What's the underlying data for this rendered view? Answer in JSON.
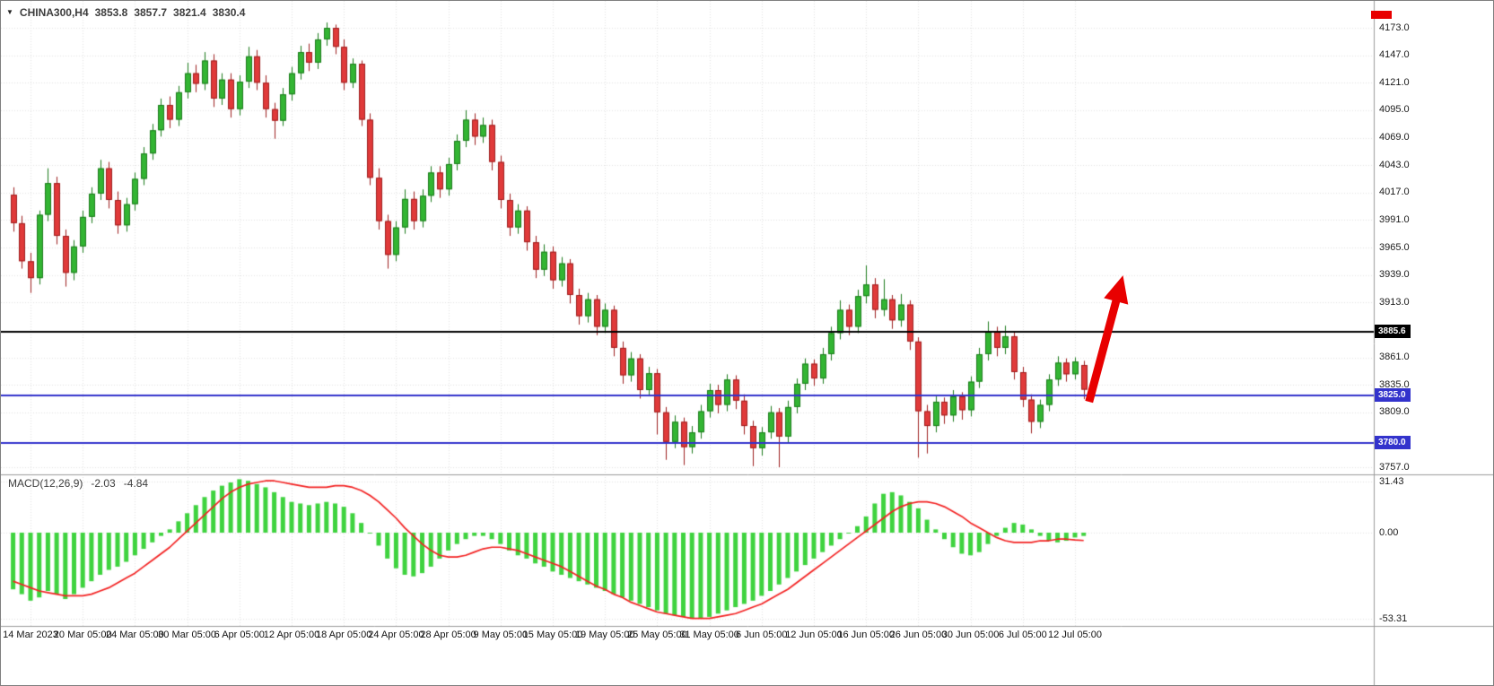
{
  "header": {
    "dropdown_icon": "▼",
    "symbol": "CHINA300,H4",
    "open": "3853.8",
    "high": "3857.7",
    "low": "3821.4",
    "close": "3830.4"
  },
  "macd": {
    "label": "MACD(12,26,9)",
    "value": "-2.03",
    "signal_value": "-4.84",
    "axis_ticks": [
      "31.43",
      "0.00",
      "-53.31"
    ]
  },
  "price_axis": {
    "ticks": [
      "4173.0",
      "4147.0",
      "4121.0",
      "4095.0",
      "4069.0",
      "4043.0",
      "4017.0",
      "3991.0",
      "3965.0",
      "3939.0",
      "3913.0",
      "3861.0",
      "3835.0",
      "3809.0",
      "3757.0"
    ]
  },
  "time_axis": {
    "labels": [
      {
        "text": "14 Mar 2023",
        "index": 2
      },
      {
        "text": "20 Mar 05:00",
        "index": 8
      },
      {
        "text": "24 Mar 05:00",
        "index": 14
      },
      {
        "text": "30 Mar 05:00",
        "index": 20
      },
      {
        "text": "6 Apr 05:00",
        "index": 26
      },
      {
        "text": "12 Apr 05:00",
        "index": 32
      },
      {
        "text": "18 Apr 05:00",
        "index": 38
      },
      {
        "text": "24 Apr 05:00",
        "index": 44
      },
      {
        "text": "28 Apr 05:00",
        "index": 50
      },
      {
        "text": "9 May 05:00",
        "index": 56
      },
      {
        "text": "15 May 05:00",
        "index": 62
      },
      {
        "text": "19 May 05:00",
        "index": 68
      },
      {
        "text": "25 May 05:00",
        "index": 74
      },
      {
        "text": "31 May 05:00",
        "index": 80
      },
      {
        "text": "6 Jun 05:00",
        "index": 86
      },
      {
        "text": "12 Jun 05:00",
        "index": 92
      },
      {
        "text": "16 Jun 05:00",
        "index": 98
      },
      {
        "text": "26 Jun 05:00",
        "index": 104
      },
      {
        "text": "30 Jun 05:00",
        "index": 110
      },
      {
        "text": "6 Jul 05:00",
        "index": 116
      },
      {
        "text": "12 Jul 05:00",
        "index": 122
      }
    ]
  },
  "lines": {
    "resistance": {
      "value": 3885.6,
      "label": "3885.6",
      "color": "#000000"
    },
    "support1": {
      "value": 3825.0,
      "label": "3825.0",
      "color": "#3333cc"
    },
    "support2": {
      "value": 3780.0,
      "label": "3780.0",
      "color": "#3333cc"
    }
  },
  "colors": {
    "bull": "#33b533",
    "bull_edge": "#1d7c1d",
    "bear": "#e03a3a",
    "bear_edge": "#9e1f1f",
    "histogram": "#3fd33f",
    "signal": "#f32222",
    "grid": "#e4e4e4",
    "separator": "#9b9b9b",
    "arrow": "#e80000",
    "axis_text": "#1a1a1a"
  },
  "chart_data": {
    "type": "candlestick+macd",
    "symbol": "CHINA300",
    "timeframe": "H4",
    "ylim": [
      3757.0,
      4173.0
    ],
    "macd_ylim": [
      -53.31,
      31.43
    ],
    "grid": true,
    "candles": [
      [
        4015,
        4022,
        3980,
        3988
      ],
      [
        3988,
        3995,
        3945,
        3952
      ],
      [
        3952,
        3960,
        3922,
        3936
      ],
      [
        3936,
        4000,
        3930,
        3996
      ],
      [
        3996,
        4040,
        3990,
        4026
      ],
      [
        4026,
        4032,
        3968,
        3976
      ],
      [
        3976,
        3982,
        3928,
        3941
      ],
      [
        3941,
        3972,
        3934,
        3966
      ],
      [
        3966,
        4000,
        3960,
        3994
      ],
      [
        3994,
        4022,
        3988,
        4016
      ],
      [
        4016,
        4048,
        4010,
        4040
      ],
      [
        4040,
        4046,
        4002,
        4010
      ],
      [
        4010,
        4018,
        3978,
        3986
      ],
      [
        3986,
        4012,
        3980,
        4006
      ],
      [
        4006,
        4036,
        4000,
        4030
      ],
      [
        4030,
        4060,
        4024,
        4054
      ],
      [
        4054,
        4082,
        4048,
        4076
      ],
      [
        4076,
        4106,
        4070,
        4100
      ],
      [
        4100,
        4108,
        4078,
        4086
      ],
      [
        4086,
        4118,
        4080,
        4112
      ],
      [
        4112,
        4140,
        4106,
        4130
      ],
      [
        4130,
        4138,
        4112,
        4120
      ],
      [
        4120,
        4150,
        4114,
        4142
      ],
      [
        4142,
        4148,
        4098,
        4106
      ],
      [
        4106,
        4130,
        4100,
        4124
      ],
      [
        4124,
        4130,
        4088,
        4096
      ],
      [
        4096,
        4128,
        4090,
        4122
      ],
      [
        4122,
        4155,
        4116,
        4146
      ],
      [
        4146,
        4152,
        4114,
        4121
      ],
      [
        4121,
        4128,
        4088,
        4096
      ],
      [
        4096,
        4102,
        4068,
        4085
      ],
      [
        4085,
        4116,
        4080,
        4110
      ],
      [
        4110,
        4136,
        4104,
        4130
      ],
      [
        4130,
        4156,
        4124,
        4150
      ],
      [
        4150,
        4158,
        4132,
        4140
      ],
      [
        4140,
        4168,
        4134,
        4162
      ],
      [
        4162,
        4178,
        4156,
        4173
      ],
      [
        4173,
        4176,
        4148,
        4155
      ],
      [
        4155,
        4162,
        4114,
        4121
      ],
      [
        4121,
        4144,
        4116,
        4139
      ],
      [
        4139,
        4142,
        4080,
        4086
      ],
      [
        4086,
        4092,
        4024,
        4031
      ],
      [
        4031,
        4040,
        3982,
        3990
      ],
      [
        3990,
        3996,
        3945,
        3958
      ],
      [
        3958,
        3990,
        3952,
        3984
      ],
      [
        3984,
        4020,
        3978,
        4011
      ],
      [
        4011,
        4018,
        3982,
        3990
      ],
      [
        3990,
        4020,
        3984,
        4014
      ],
      [
        4014,
        4042,
        4008,
        4036
      ],
      [
        4036,
        4042,
        4012,
        4020
      ],
      [
        4020,
        4050,
        4014,
        4044
      ],
      [
        4044,
        4072,
        4038,
        4066
      ],
      [
        4066,
        4095,
        4060,
        4086
      ],
      [
        4086,
        4092,
        4062,
        4070
      ],
      [
        4070,
        4088,
        4064,
        4081
      ],
      [
        4081,
        4086,
        4038,
        4046
      ],
      [
        4046,
        4052,
        4002,
        4010
      ],
      [
        4010,
        4016,
        3976,
        3984
      ],
      [
        3984,
        4006,
        3978,
        4000
      ],
      [
        4000,
        4004,
        3962,
        3970
      ],
      [
        3970,
        3976,
        3936,
        3944
      ],
      [
        3944,
        3968,
        3938,
        3961
      ],
      [
        3961,
        3966,
        3926,
        3934
      ],
      [
        3934,
        3956,
        3928,
        3950
      ],
      [
        3950,
        3954,
        3912,
        3920
      ],
      [
        3920,
        3926,
        3892,
        3900
      ],
      [
        3900,
        3922,
        3894,
        3916
      ],
      [
        3916,
        3920,
        3882,
        3890
      ],
      [
        3890,
        3912,
        3884,
        3906
      ],
      [
        3906,
        3910,
        3862,
        3870
      ],
      [
        3870,
        3876,
        3836,
        3844
      ],
      [
        3844,
        3866,
        3838,
        3860
      ],
      [
        3860,
        3864,
        3822,
        3830
      ],
      [
        3830,
        3852,
        3824,
        3846
      ],
      [
        3846,
        3850,
        3788,
        3809
      ],
      [
        3809,
        3814,
        3764,
        3781
      ],
      [
        3781,
        3806,
        3775,
        3800
      ],
      [
        3800,
        3804,
        3759,
        3776
      ],
      [
        3776,
        3796,
        3770,
        3790
      ],
      [
        3790,
        3816,
        3784,
        3810
      ],
      [
        3810,
        3836,
        3804,
        3830
      ],
      [
        3830,
        3835,
        3808,
        3816
      ],
      [
        3816,
        3845,
        3810,
        3840
      ],
      [
        3840,
        3844,
        3812,
        3820
      ],
      [
        3820,
        3826,
        3788,
        3796
      ],
      [
        3796,
        3801,
        3758,
        3775
      ],
      [
        3775,
        3795,
        3768,
        3790
      ],
      [
        3790,
        3815,
        3784,
        3809
      ],
      [
        3809,
        3813,
        3757,
        3786
      ],
      [
        3786,
        3820,
        3780,
        3814
      ],
      [
        3814,
        3841,
        3808,
        3836
      ],
      [
        3836,
        3860,
        3830,
        3855
      ],
      [
        3855,
        3859,
        3834,
        3841
      ],
      [
        3841,
        3870,
        3836,
        3864
      ],
      [
        3864,
        3890,
        3858,
        3884
      ],
      [
        3884,
        3915,
        3878,
        3906
      ],
      [
        3906,
        3911,
        3882,
        3890
      ],
      [
        3890,
        3925,
        3884,
        3919
      ],
      [
        3919,
        3948,
        3912,
        3930
      ],
      [
        3930,
        3936,
        3898,
        3906
      ],
      [
        3906,
        3935,
        3900,
        3916
      ],
      [
        3916,
        3920,
        3888,
        3896
      ],
      [
        3896,
        3921,
        3890,
        3911
      ],
      [
        3911,
        3915,
        3868,
        3876
      ],
      [
        3876,
        3880,
        3766,
        3810
      ],
      [
        3810,
        3816,
        3770,
        3796
      ],
      [
        3796,
        3824,
        3790,
        3819
      ],
      [
        3819,
        3823,
        3798,
        3806
      ],
      [
        3806,
        3830,
        3800,
        3824
      ],
      [
        3824,
        3828,
        3802,
        3811
      ],
      [
        3811,
        3843,
        3805,
        3838
      ],
      [
        3838,
        3870,
        3832,
        3864
      ],
      [
        3864,
        3895,
        3858,
        3886
      ],
      [
        3886,
        3890,
        3862,
        3870
      ],
      [
        3870,
        3891,
        3864,
        3881
      ],
      [
        3881,
        3885,
        3840,
        3847
      ],
      [
        3847,
        3852,
        3814,
        3821
      ],
      [
        3821,
        3826,
        3789,
        3800
      ],
      [
        3800,
        3821,
        3794,
        3816
      ],
      [
        3816,
        3845,
        3810,
        3840
      ],
      [
        3840,
        3862,
        3834,
        3856
      ],
      [
        3856,
        3860,
        3838,
        3845
      ],
      [
        3845,
        3861,
        3840,
        3857
      ],
      [
        3853.8,
        3857.7,
        3821.4,
        3830.4
      ]
    ],
    "macd_histogram": [
      -35,
      -38,
      -42,
      -40,
      -36,
      -38,
      -41,
      -38,
      -34,
      -30,
      -26,
      -23,
      -21,
      -18,
      -14,
      -10,
      -6,
      -2,
      2,
      7,
      12,
      17,
      22,
      26,
      29,
      31,
      33,
      32,
      30,
      28,
      25,
      22,
      19,
      18,
      17,
      18,
      19,
      18,
      16,
      12,
      6,
      0,
      -8,
      -16,
      -22,
      -26,
      -27,
      -25,
      -21,
      -16,
      -11,
      -7,
      -4,
      -2,
      -2,
      -4,
      -7,
      -11,
      -14,
      -16,
      -19,
      -21,
      -24,
      -26,
      -28,
      -30,
      -32,
      -34,
      -36,
      -38,
      -40,
      -42,
      -44,
      -46,
      -48,
      -50,
      -51,
      -52,
      -53,
      -53,
      -52,
      -50,
      -48,
      -46,
      -44,
      -42,
      -39,
      -36,
      -32,
      -28,
      -24,
      -20,
      -16,
      -12,
      -8,
      -4,
      0,
      4,
      10,
      18,
      24,
      25,
      23,
      19,
      15,
      8,
      2,
      -4,
      -9,
      -13,
      -14,
      -12,
      -7,
      -2,
      3,
      6,
      5,
      2,
      -2,
      -5,
      -6,
      -5,
      -3,
      -2.03
    ],
    "macd_signal": [
      -30,
      -32,
      -34,
      -36,
      -37,
      -38,
      -39,
      -39,
      -39,
      -38,
      -36,
      -34,
      -31,
      -28,
      -25,
      -21,
      -17,
      -13,
      -9,
      -4,
      1,
      6,
      11,
      16,
      21,
      25,
      28,
      30,
      31,
      32,
      32,
      31,
      30,
      29,
      28,
      28,
      28,
      29,
      29,
      28,
      26,
      23,
      19,
      14,
      9,
      3,
      -2,
      -7,
      -11,
      -14,
      -15,
      -15,
      -14,
      -12,
      -10,
      -9,
      -9,
      -10,
      -11,
      -13,
      -15,
      -17,
      -19,
      -21,
      -24,
      -27,
      -30,
      -33,
      -35,
      -38,
      -40,
      -43,
      -45,
      -47,
      -49,
      -50,
      -51,
      -52,
      -53,
      -53,
      -53,
      -52,
      -51,
      -50,
      -48,
      -46,
      -44,
      -41,
      -38,
      -35,
      -31,
      -27,
      -23,
      -19,
      -15,
      -11,
      -7,
      -3,
      1,
      5,
      9,
      13,
      16,
      18,
      19,
      19,
      18,
      16,
      13,
      10,
      6,
      3,
      0,
      -3,
      -5,
      -6,
      -6,
      -6,
      -5,
      -5,
      -4,
      -4,
      -4.5,
      -4.84
    ]
  }
}
